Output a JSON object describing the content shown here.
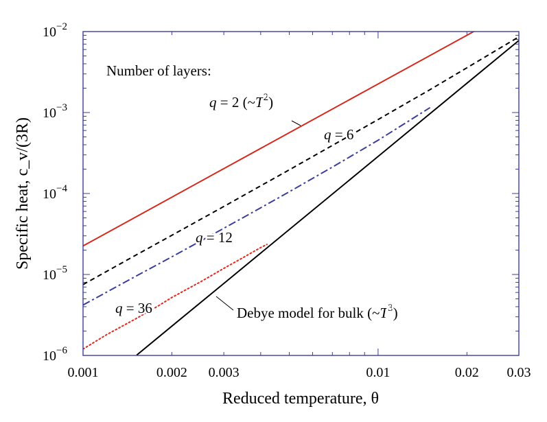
{
  "chart_data": {
    "type": "line",
    "xscale": "log",
    "yscale": "log",
    "xlim": [
      0.001,
      0.03
    ],
    "ylim": [
      1e-06,
      0.01
    ],
    "xlabel": "Reduced temperature, θ",
    "ylabel": "Specific heat, c_v/(3R)",
    "x_ticks": [
      {
        "value": 0.001,
        "label": "0.001"
      },
      {
        "value": 0.002,
        "label": "0.002"
      },
      {
        "value": 0.003,
        "label": "0.003"
      },
      {
        "value": 0.01,
        "label": "0.01"
      },
      {
        "value": 0.02,
        "label": "0.02"
      },
      {
        "value": 0.03,
        "label": "0.03"
      }
    ],
    "y_ticks": [
      {
        "value": 1e-06,
        "base": "10",
        "exp": "−6"
      },
      {
        "value": 1e-05,
        "base": "10",
        "exp": "−5"
      },
      {
        "value": 0.0001,
        "base": "10",
        "exp": "−4"
      },
      {
        "value": 0.001,
        "base": "10",
        "exp": "−3"
      },
      {
        "value": 0.01,
        "base": "10",
        "exp": "−2"
      }
    ],
    "annotation_header": "Number of layers:",
    "series": [
      {
        "name": "q = 2 (~T2)",
        "color": "#d42a1e",
        "dash": "solid",
        "x": [
          0.001,
          0.0015,
          0.002,
          0.003,
          0.005,
          0.01,
          0.015,
          0.0215
        ],
        "y": [
          2.25e-05,
          5.06e-05,
          9e-05,
          0.000203,
          0.000563,
          0.00225,
          0.00506,
          0.0104
        ]
      },
      {
        "name": "q = 6",
        "color": "#000000",
        "dash": "dashed",
        "x": [
          0.001,
          0.0015,
          0.002,
          0.003,
          0.005,
          0.01,
          0.015,
          0.02,
          0.03
        ],
        "y": [
          7.5e-06,
          1.71e-05,
          3.05e-05,
          6.92e-05,
          0.000196,
          0.00082,
          0.00192,
          0.00357,
          0.0086
        ]
      },
      {
        "name": "q = 12",
        "color": "#3a3d9a",
        "dash": "dashdot",
        "x": [
          0.001,
          0.0015,
          0.002,
          0.003,
          0.004,
          0.005,
          0.007,
          0.01,
          0.015
        ],
        "y": [
          4.2e-06,
          9.4e-06,
          1.65e-05,
          3.72e-05,
          6.65e-05,
          0.000105,
          0.000212,
          0.000455,
          0.00115
        ]
      },
      {
        "name": "q = 36",
        "color": "#e0281e",
        "dash": "dotted",
        "x": [
          0.001,
          0.0012,
          0.0015,
          0.0018,
          0.002,
          0.0025,
          0.003,
          0.0035,
          0.004,
          0.0042
        ],
        "y": [
          1.2e-06,
          1.8e-06,
          2.8e-06,
          4.1e-06,
          5.2e-06,
          8.1e-06,
          1.19e-05,
          1.63e-05,
          2.15e-05,
          2.35e-05
        ]
      },
      {
        "name": "Debye model for bulk (~T3)",
        "color": "#000000",
        "dash": "solid",
        "x": [
          0.00152,
          0.002,
          0.003,
          0.005,
          0.01,
          0.02,
          0.03
        ],
        "y": [
          1.01e-06,
          2.3e-06,
          7.75e-06,
          3.59e-05,
          0.000287,
          0.0023,
          0.00776
        ]
      }
    ],
    "annotations": [
      {
        "text": "q = 2 (~T",
        "sup": "2",
        "tail": ")"
      },
      {
        "text": "q = 6",
        "sup": "",
        "tail": ""
      },
      {
        "text": "q = 12",
        "sup": "",
        "tail": ""
      },
      {
        "text": "q = 36",
        "sup": "",
        "tail": ""
      },
      {
        "text": "Debye model for bulk (~T",
        "sup": "3",
        "tail": ")"
      }
    ]
  }
}
